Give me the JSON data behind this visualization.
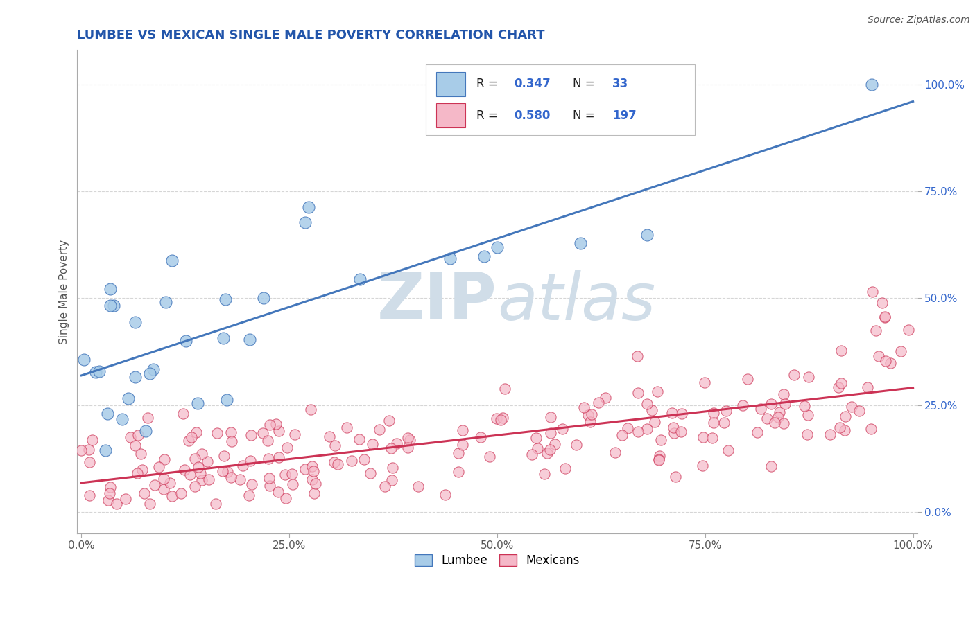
{
  "title": "LUMBEE VS MEXICAN SINGLE MALE POVERTY CORRELATION CHART",
  "source": "Source: ZipAtlas.com",
  "ylabel": "Single Male Poverty",
  "lumbee_R": 0.347,
  "lumbee_N": 33,
  "mexican_R": 0.58,
  "mexican_N": 197,
  "lumbee_color": "#a8cce8",
  "mexican_color": "#f5b8c8",
  "lumbee_line_color": "#4477bb",
  "mexican_line_color": "#cc3355",
  "bg_color": "#ffffff",
  "grid_color": "#cccccc",
  "title_color": "#2255aa",
  "legend_value_color": "#3366cc",
  "watermark_color": "#d0dde8",
  "ytick_color": "#3366cc",
  "xtick_color": "#555555"
}
